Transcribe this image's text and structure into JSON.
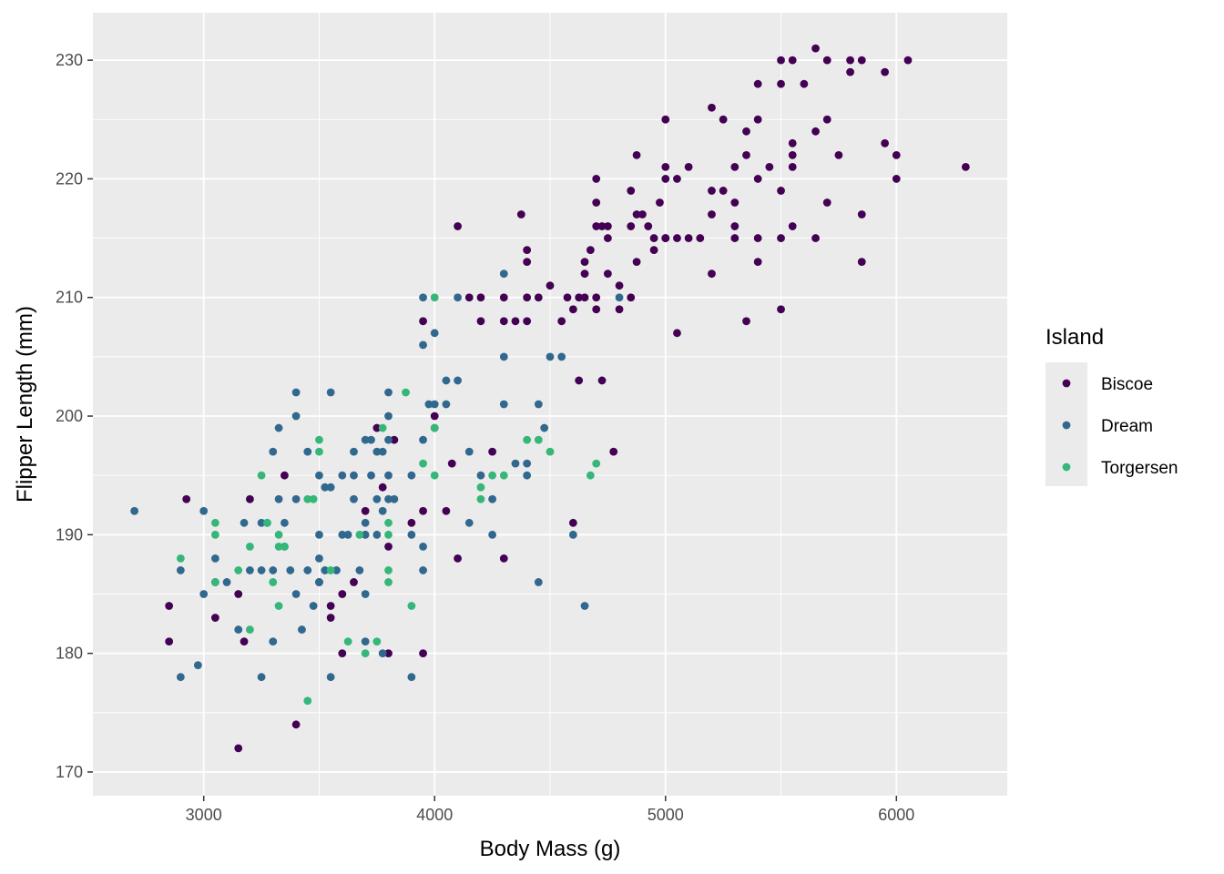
{
  "chart_data": {
    "type": "scatter",
    "xlabel": "Body Mass (g)",
    "ylabel": "Flipper Length (mm)",
    "xlim": [
      2520,
      6480
    ],
    "ylim": [
      168.0,
      234.0
    ],
    "x_ticks": [
      3000,
      4000,
      5000,
      6000
    ],
    "y_ticks": [
      170,
      180,
      190,
      200,
      210,
      220,
      230
    ],
    "x_tick_labels": [
      "3000",
      "4000",
      "5000",
      "6000"
    ],
    "y_tick_labels": [
      "170",
      "180",
      "190",
      "200",
      "210",
      "220",
      "230"
    ],
    "grid": true,
    "background": "#ebebeb",
    "legend": {
      "title": "Island",
      "position": "right"
    },
    "series": [
      {
        "name": "Biscoe",
        "color": "#440154",
        "points": [
          [
            2850,
            184
          ],
          [
            2850,
            181
          ],
          [
            2925,
            193
          ],
          [
            3050,
            183
          ],
          [
            3150,
            185
          ],
          [
            3175,
            181
          ],
          [
            3200,
            193
          ],
          [
            3150,
            172
          ],
          [
            3350,
            195
          ],
          [
            3400,
            174
          ],
          [
            3500,
            186
          ],
          [
            3550,
            183
          ],
          [
            3550,
            184
          ],
          [
            3600,
            180
          ],
          [
            3600,
            185
          ],
          [
            3650,
            186
          ],
          [
            3700,
            192
          ],
          [
            3750,
            199
          ],
          [
            3775,
            194
          ],
          [
            3800,
            180
          ],
          [
            3800,
            189
          ],
          [
            3825,
            198
          ],
          [
            3900,
            191
          ],
          [
            3950,
            192
          ],
          [
            3950,
            180
          ],
          [
            3950,
            208
          ],
          [
            4000,
            199
          ],
          [
            4000,
            200
          ],
          [
            4050,
            192
          ],
          [
            4075,
            196
          ],
          [
            4100,
            188
          ],
          [
            4100,
            216
          ],
          [
            4150,
            210
          ],
          [
            4200,
            210
          ],
          [
            4200,
            208
          ],
          [
            4250,
            197
          ],
          [
            4300,
            208
          ],
          [
            4300,
            188
          ],
          [
            4300,
            210
          ],
          [
            4350,
            208
          ],
          [
            4375,
            217
          ],
          [
            4400,
            213
          ],
          [
            4400,
            214
          ],
          [
            4400,
            208
          ],
          [
            4400,
            210
          ],
          [
            4450,
            210
          ],
          [
            4500,
            211
          ],
          [
            4550,
            208
          ],
          [
            4575,
            210
          ],
          [
            4600,
            191
          ],
          [
            4600,
            209
          ],
          [
            4625,
            210
          ],
          [
            4625,
            203
          ],
          [
            4650,
            212
          ],
          [
            4650,
            213
          ],
          [
            4650,
            210
          ],
          [
            4675,
            214
          ],
          [
            4700,
            210
          ],
          [
            4700,
            209
          ],
          [
            4700,
            218
          ],
          [
            4700,
            220
          ],
          [
            4700,
            216
          ],
          [
            4725,
            203
          ],
          [
            4725,
            216
          ],
          [
            4750,
            212
          ],
          [
            4750,
            216
          ],
          [
            4750,
            215
          ],
          [
            4775,
            197
          ],
          [
            4800,
            211
          ],
          [
            4800,
            209
          ],
          [
            4850,
            216
          ],
          [
            4850,
            210
          ],
          [
            4850,
            219
          ],
          [
            4875,
            222
          ],
          [
            4875,
            213
          ],
          [
            4875,
            217
          ],
          [
            4900,
            217
          ],
          [
            4925,
            216
          ],
          [
            4950,
            214
          ],
          [
            4950,
            215
          ],
          [
            4975,
            218
          ],
          [
            5000,
            221
          ],
          [
            5000,
            225
          ],
          [
            5000,
            220
          ],
          [
            5000,
            215
          ],
          [
            5000,
            215
          ],
          [
            5050,
            207
          ],
          [
            5050,
            220
          ],
          [
            5050,
            215
          ],
          [
            5100,
            215
          ],
          [
            5100,
            221
          ],
          [
            5150,
            215
          ],
          [
            5200,
            217
          ],
          [
            5200,
            226
          ],
          [
            5200,
            212
          ],
          [
            5200,
            219
          ],
          [
            5250,
            219
          ],
          [
            5250,
            225
          ],
          [
            5300,
            216
          ],
          [
            5300,
            218
          ],
          [
            5300,
            215
          ],
          [
            5300,
            221
          ],
          [
            5350,
            222
          ],
          [
            5350,
            224
          ],
          [
            5350,
            208
          ],
          [
            5400,
            220
          ],
          [
            5400,
            225
          ],
          [
            5400,
            228
          ],
          [
            5400,
            213
          ],
          [
            5400,
            215
          ],
          [
            5450,
            221
          ],
          [
            5500,
            219
          ],
          [
            5500,
            228
          ],
          [
            5500,
            230
          ],
          [
            5500,
            209
          ],
          [
            5500,
            215
          ],
          [
            5550,
            216
          ],
          [
            5550,
            221
          ],
          [
            5550,
            222
          ],
          [
            5550,
            223
          ],
          [
            5550,
            230
          ],
          [
            5600,
            228
          ],
          [
            5650,
            224
          ],
          [
            5650,
            231
          ],
          [
            5650,
            215
          ],
          [
            5700,
            230
          ],
          [
            5700,
            218
          ],
          [
            5700,
            225
          ],
          [
            5750,
            222
          ],
          [
            5800,
            229
          ],
          [
            5800,
            230
          ],
          [
            5850,
            230
          ],
          [
            5850,
            213
          ],
          [
            5850,
            217
          ],
          [
            5950,
            229
          ],
          [
            5950,
            223
          ],
          [
            6000,
            222
          ],
          [
            6000,
            220
          ],
          [
            6050,
            230
          ],
          [
            6300,
            221
          ]
        ]
      },
      {
        "name": "Dream",
        "color": "#31688e",
        "points": [
          [
            2700,
            192
          ],
          [
            2900,
            187
          ],
          [
            2900,
            178
          ],
          [
            2975,
            179
          ],
          [
            3000,
            192
          ],
          [
            3000,
            185
          ],
          [
            3050,
            188
          ],
          [
            3050,
            186
          ],
          [
            3100,
            186
          ],
          [
            3150,
            182
          ],
          [
            3175,
            191
          ],
          [
            3200,
            187
          ],
          [
            3250,
            187
          ],
          [
            3250,
            191
          ],
          [
            3250,
            178
          ],
          [
            3275,
            191
          ],
          [
            3300,
            181
          ],
          [
            3300,
            187
          ],
          [
            3300,
            197
          ],
          [
            3325,
            199
          ],
          [
            3325,
            193
          ],
          [
            3350,
            191
          ],
          [
            3350,
            189
          ],
          [
            3375,
            187
          ],
          [
            3400,
            202
          ],
          [
            3400,
            200
          ],
          [
            3400,
            193
          ],
          [
            3400,
            185
          ],
          [
            3425,
            182
          ],
          [
            3450,
            197
          ],
          [
            3450,
            187
          ],
          [
            3475,
            184
          ],
          [
            3500,
            195
          ],
          [
            3500,
            190
          ],
          [
            3500,
            188
          ],
          [
            3500,
            186
          ],
          [
            3525,
            187
          ],
          [
            3525,
            194
          ],
          [
            3550,
            178
          ],
          [
            3550,
            202
          ],
          [
            3550,
            194
          ],
          [
            3575,
            187
          ],
          [
            3600,
            195
          ],
          [
            3600,
            190
          ],
          [
            3625,
            190
          ],
          [
            3650,
            197
          ],
          [
            3650,
            195
          ],
          [
            3650,
            193
          ],
          [
            3675,
            187
          ],
          [
            3700,
            198
          ],
          [
            3700,
            191
          ],
          [
            3700,
            190
          ],
          [
            3700,
            181
          ],
          [
            3700,
            185
          ],
          [
            3725,
            195
          ],
          [
            3725,
            198
          ],
          [
            3750,
            197
          ],
          [
            3750,
            193
          ],
          [
            3750,
            190
          ],
          [
            3775,
            197
          ],
          [
            3775,
            192
          ],
          [
            3775,
            180
          ],
          [
            3800,
            198
          ],
          [
            3800,
            195
          ],
          [
            3800,
            193
          ],
          [
            3800,
            200
          ],
          [
            3800,
            202
          ],
          [
            3825,
            193
          ],
          [
            3900,
            195
          ],
          [
            3900,
            178
          ],
          [
            3900,
            190
          ],
          [
            3950,
            189
          ],
          [
            3950,
            187
          ],
          [
            3950,
            210
          ],
          [
            3950,
            206
          ],
          [
            3950,
            198
          ],
          [
            3975,
            201
          ],
          [
            4000,
            207
          ],
          [
            4000,
            201
          ],
          [
            4050,
            203
          ],
          [
            4050,
            201
          ],
          [
            4100,
            210
          ],
          [
            4100,
            203
          ],
          [
            4150,
            197
          ],
          [
            4150,
            191
          ],
          [
            4200,
            195
          ],
          [
            4250,
            193
          ],
          [
            4250,
            190
          ],
          [
            4300,
            212
          ],
          [
            4300,
            205
          ],
          [
            4300,
            201
          ],
          [
            4350,
            196
          ],
          [
            4400,
            195
          ],
          [
            4400,
            196
          ],
          [
            4450,
            201
          ],
          [
            4450,
            186
          ],
          [
            4475,
            199
          ],
          [
            4500,
            205
          ],
          [
            4550,
            205
          ],
          [
            4600,
            190
          ],
          [
            4650,
            184
          ],
          [
            4800,
            210
          ]
        ]
      },
      {
        "name": "Torgersen",
        "color": "#35b779",
        "points": [
          [
            2900,
            188
          ],
          [
            3050,
            191
          ],
          [
            3050,
            190
          ],
          [
            3050,
            186
          ],
          [
            3150,
            187
          ],
          [
            3200,
            189
          ],
          [
            3200,
            182
          ],
          [
            3250,
            195
          ],
          [
            3275,
            191
          ],
          [
            3300,
            186
          ],
          [
            3325,
            190
          ],
          [
            3325,
            189
          ],
          [
            3325,
            184
          ],
          [
            3350,
            189
          ],
          [
            3450,
            193
          ],
          [
            3450,
            176
          ],
          [
            3475,
            193
          ],
          [
            3500,
            198
          ],
          [
            3500,
            197
          ],
          [
            3550,
            187
          ],
          [
            3625,
            181
          ],
          [
            3675,
            190
          ],
          [
            3700,
            180
          ],
          [
            3750,
            181
          ],
          [
            3800,
            191
          ],
          [
            3800,
            187
          ],
          [
            3800,
            186
          ],
          [
            3800,
            190
          ],
          [
            3875,
            202
          ],
          [
            3900,
            184
          ],
          [
            3950,
            196
          ],
          [
            4000,
            210
          ],
          [
            4000,
            199
          ],
          [
            4000,
            195
          ],
          [
            4200,
            194
          ],
          [
            4200,
            193
          ],
          [
            4250,
            195
          ],
          [
            4300,
            195
          ],
          [
            4400,
            198
          ],
          [
            4450,
            198
          ],
          [
            4500,
            197
          ],
          [
            4675,
            195
          ],
          [
            4700,
            196
          ],
          [
            3775,
            199
          ]
        ]
      }
    ]
  }
}
